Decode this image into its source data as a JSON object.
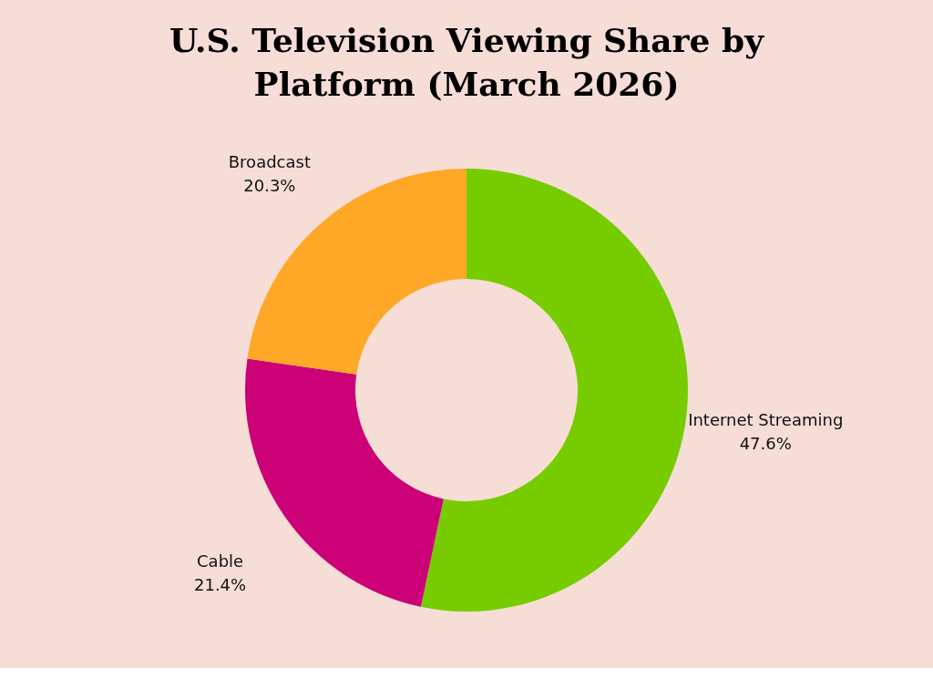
{
  "chart_data": {
    "type": "donut",
    "title": "U.S. Television Viewing Share by Platform (March 2026)",
    "categories": [
      "Internet Streaming",
      "Cable",
      "Broadcast"
    ],
    "values": [
      47.6,
      21.4,
      20.3
    ],
    "colors": [
      "#77cc00",
      "#cc0077",
      "#ffa726"
    ],
    "value_labels": [
      "47.6%",
      "21.4%",
      "20.3%"
    ],
    "legend": false
  }
}
